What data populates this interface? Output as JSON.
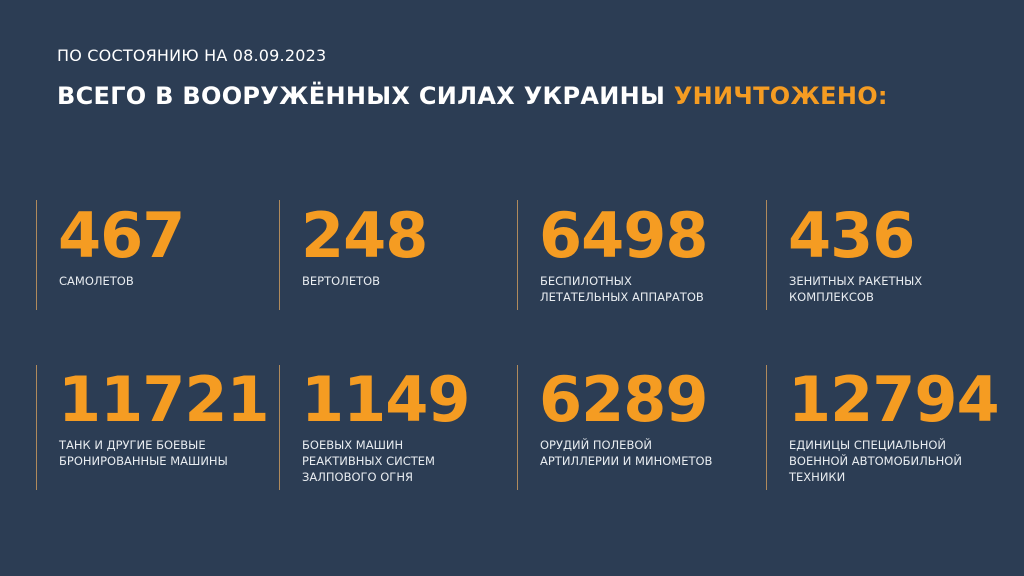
{
  "header": {
    "date_line": "ПО СОСТОЯНИЮ НА 08.09.2023",
    "title_main": "ВСЕГО В ВООРУЖЁННЫХ СИЛАХ УКРАИНЫ",
    "title_highlight": "УНИЧТОЖЕНО:"
  },
  "colors": {
    "background": "#2c3d54",
    "accent": "#f59c22",
    "text": "#ffffff"
  },
  "stats": [
    {
      "value": "467",
      "label": "САМОЛЕТОВ"
    },
    {
      "value": "248",
      "label": "ВЕРТОЛЕТОВ"
    },
    {
      "value": "6498",
      "label": "БЕСПИЛОТНЫХ\nЛЕТАТЕЛЬНЫХ АППАРАТОВ"
    },
    {
      "value": "436",
      "label": "ЗЕНИТНЫХ РАКЕТНЫХ\nКОМПЛЕКСОВ"
    },
    {
      "value": "11721",
      "label": "ТАНК И ДРУГИЕ БОЕВЫЕ\nБРОНИРОВАННЫЕ МАШИНЫ"
    },
    {
      "value": "1149",
      "label": "БОЕВЫХ МАШИН\nРЕАКТИВНЫХ СИСТЕМ\nЗАЛПОВОГО ОГНЯ"
    },
    {
      "value": "6289",
      "label": "ОРУДИЙ ПОЛЕВОЙ\nАРТИЛЛЕРИИ И МИНОМЕТОВ"
    },
    {
      "value": "12794",
      "label": "ЕДИНИЦЫ СПЕЦИАЛЬНОЙ\nВОЕННОЙ АВТОМОБИЛЬНОЙ\nТЕХНИКИ"
    }
  ]
}
